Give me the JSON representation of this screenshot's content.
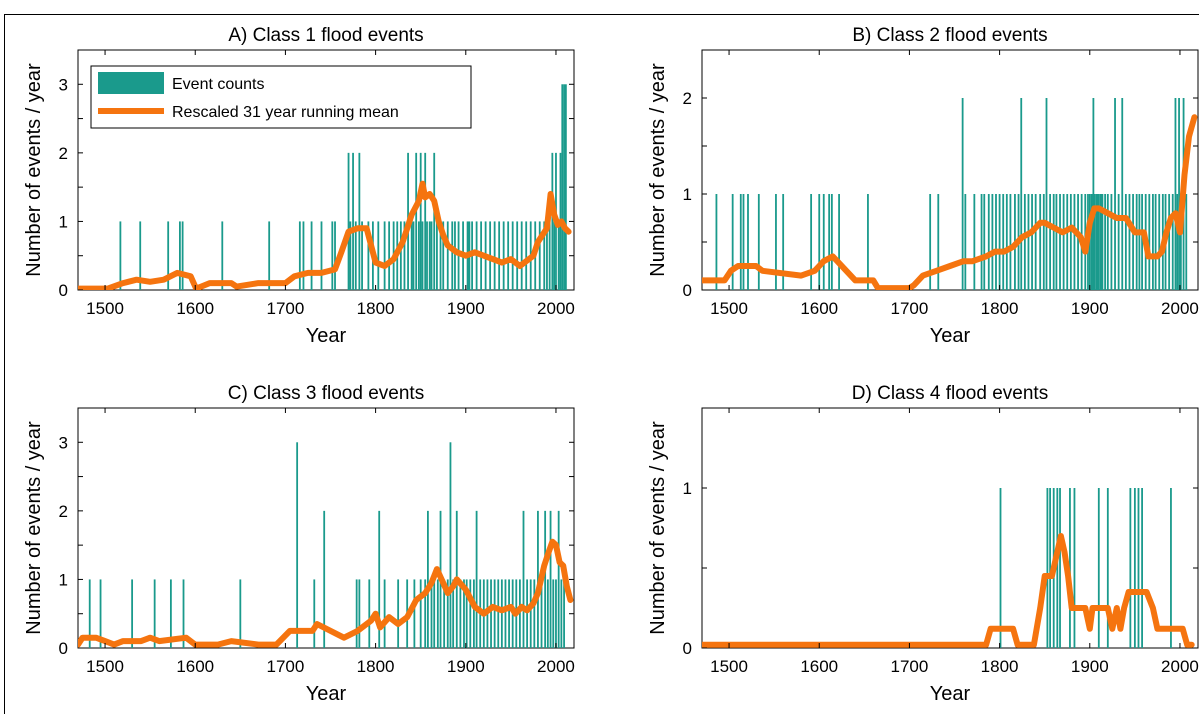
{
  "legend": {
    "bars_label": "Event counts",
    "line_label": "Rescaled 31 year running mean"
  },
  "colors": {
    "bars": "#1a9a8c",
    "line": "#f5740f",
    "axis": "#000000"
  },
  "chart_data": [
    {
      "type": "bar",
      "title": "A) Class 1 flood events",
      "xlabel": "Year",
      "ylabel": "Number of events / year",
      "xlim": [
        1470,
        2020
      ],
      "ylim": [
        0,
        3.5
      ],
      "xticks": [
        1500,
        1600,
        1700,
        1800,
        1900,
        2000
      ],
      "yticks": [
        0,
        1,
        2,
        3
      ],
      "legend_position": "top-left",
      "grid": false,
      "series": [
        {
          "name": "Event counts",
          "x": [
            1517,
            1539,
            1570,
            1583,
            1586,
            1630,
            1682,
            1716,
            1720,
            1729,
            1740,
            1752,
            1755,
            1770,
            1772,
            1775,
            1778,
            1782,
            1785,
            1792,
            1797,
            1803,
            1810,
            1815,
            1820,
            1824,
            1828,
            1832,
            1836,
            1840,
            1842,
            1845,
            1848,
            1850,
            1852,
            1855,
            1857,
            1860,
            1862,
            1865,
            1868,
            1872,
            1875,
            1880,
            1885,
            1888,
            1892,
            1897,
            1902,
            1904,
            1907,
            1912,
            1917,
            1922,
            1927,
            1932,
            1937,
            1942,
            1947,
            1952,
            1957,
            1962,
            1967,
            1972,
            1977,
            1982,
            1987,
            1990,
            1993,
            1996,
            1998,
            2000,
            2003,
            2005,
            2007,
            2009,
            2011
          ],
          "values": [
            1,
            1,
            1,
            1,
            1,
            1,
            1,
            1,
            1,
            1,
            1,
            1,
            1,
            2,
            1,
            2,
            1,
            2,
            1,
            1,
            1,
            1,
            1,
            1,
            1,
            1,
            1,
            1,
            2,
            1,
            1,
            2,
            1,
            2,
            1,
            2,
            1,
            1,
            1,
            2,
            1,
            1,
            1,
            1,
            1,
            1,
            1,
            1,
            1,
            1,
            1,
            1,
            1,
            1,
            1,
            1,
            1,
            1,
            1,
            1,
            1,
            1,
            1,
            1,
            1,
            1,
            1,
            1,
            1,
            2,
            1,
            2,
            1,
            2,
            3,
            3,
            3
          ]
        },
        {
          "name": "Rescaled 31 year running mean",
          "x": [
            1470,
            1503,
            1520,
            1535,
            1550,
            1565,
            1580,
            1595,
            1601,
            1616,
            1640,
            1646,
            1670,
            1700,
            1710,
            1725,
            1740,
            1755,
            1762,
            1770,
            1780,
            1790,
            1800,
            1810,
            1820,
            1830,
            1840,
            1848,
            1852,
            1855,
            1860,
            1865,
            1870,
            1875,
            1880,
            1890,
            1900,
            1910,
            1920,
            1930,
            1940,
            1950,
            1960,
            1970,
            1975,
            1980,
            1985,
            1990,
            1994,
            1998,
            2002,
            2006,
            2010,
            2014
          ],
          "values": [
            0.02,
            0.02,
            0.1,
            0.15,
            0.12,
            0.15,
            0.25,
            0.2,
            0.02,
            0.1,
            0.1,
            0.05,
            0.1,
            0.1,
            0.2,
            0.25,
            0.25,
            0.3,
            0.55,
            0.85,
            0.9,
            0.9,
            0.4,
            0.35,
            0.45,
            0.7,
            1.1,
            1.3,
            1.55,
            1.35,
            1.4,
            1.3,
            1.0,
            0.8,
            0.65,
            0.55,
            0.5,
            0.55,
            0.5,
            0.45,
            0.4,
            0.45,
            0.35,
            0.45,
            0.5,
            0.7,
            0.8,
            0.9,
            1.4,
            1.1,
            0.95,
            1.0,
            0.9,
            0.85
          ]
        }
      ]
    },
    {
      "type": "bar",
      "title": "B) Class 2 flood events",
      "xlabel": "Year",
      "ylabel": "Number of events / year",
      "xlim": [
        1470,
        2020
      ],
      "ylim": [
        0,
        2.5
      ],
      "xticks": [
        1500,
        1600,
        1700,
        1800,
        1900,
        2000
      ],
      "yticks": [
        0,
        1,
        2
      ],
      "grid": false,
      "series": [
        {
          "name": "Event counts",
          "x": [
            1486,
            1504,
            1513,
            1516,
            1521,
            1533,
            1552,
            1560,
            1591,
            1600,
            1605,
            1611,
            1614,
            1622,
            1654,
            1723,
            1732,
            1759,
            1762,
            1772,
            1780,
            1783,
            1788,
            1792,
            1796,
            1800,
            1804,
            1808,
            1812,
            1817,
            1821,
            1824,
            1828,
            1832,
            1836,
            1840,
            1845,
            1849,
            1852,
            1856,
            1860,
            1863,
            1867,
            1871,
            1875,
            1879,
            1883,
            1887,
            1891,
            1895,
            1898,
            1900,
            1902,
            1904,
            1905,
            1907,
            1909,
            1910,
            1912,
            1914,
            1917,
            1920,
            1924,
            1928,
            1932,
            1936,
            1940,
            1944,
            1948,
            1952,
            1955,
            1958,
            1962,
            1966,
            1970,
            1973,
            1977,
            1981,
            1984,
            1988,
            1992,
            1995,
            1997,
            1999,
            2001,
            2004,
            2007
          ],
          "values": [
            1,
            1,
            1,
            1,
            1,
            1,
            1,
            1,
            1,
            1,
            1,
            1,
            1,
            1,
            1,
            1,
            1,
            2,
            1,
            1,
            1,
            1,
            1,
            1,
            1,
            1,
            1,
            1,
            1,
            1,
            1,
            2,
            1,
            1,
            1,
            1,
            1,
            1,
            2,
            1,
            1,
            1,
            1,
            1,
            1,
            1,
            1,
            1,
            1,
            1,
            1,
            1,
            1,
            2,
            1,
            1,
            1,
            1,
            1,
            1,
            1,
            1,
            1,
            2,
            1,
            2,
            1,
            1,
            1,
            1,
            1,
            1,
            1,
            1,
            1,
            1,
            1,
            1,
            1,
            1,
            1,
            2,
            1,
            2,
            1,
            2,
            1
          ]
        },
        {
          "name": "Rescaled 31 year running mean",
          "x": [
            1470,
            1495,
            1502,
            1510,
            1530,
            1537,
            1580,
            1595,
            1600,
            1605,
            1615,
            1620,
            1630,
            1640,
            1660,
            1665,
            1700,
            1705,
            1715,
            1730,
            1745,
            1760,
            1770,
            1785,
            1795,
            1805,
            1815,
            1825,
            1835,
            1845,
            1850,
            1860,
            1870,
            1880,
            1890,
            1895,
            1900,
            1905,
            1910,
            1920,
            1930,
            1940,
            1950,
            1960,
            1965,
            1975,
            1980,
            1985,
            1990,
            1995,
            2000,
            2005,
            2010,
            2016
          ],
          "values": [
            0.1,
            0.1,
            0.2,
            0.25,
            0.25,
            0.2,
            0.15,
            0.2,
            0.25,
            0.3,
            0.35,
            0.3,
            0.2,
            0.1,
            0.1,
            0.02,
            0.02,
            0.05,
            0.15,
            0.2,
            0.25,
            0.3,
            0.3,
            0.35,
            0.4,
            0.4,
            0.45,
            0.55,
            0.6,
            0.7,
            0.7,
            0.65,
            0.6,
            0.65,
            0.55,
            0.4,
            0.7,
            0.85,
            0.85,
            0.8,
            0.75,
            0.75,
            0.6,
            0.6,
            0.35,
            0.35,
            0.4,
            0.6,
            0.75,
            0.8,
            0.6,
            1.2,
            1.6,
            1.8
          ]
        }
      ]
    },
    {
      "type": "bar",
      "title": "C) Class 3 flood events",
      "xlabel": "Year",
      "ylabel": "Number of events / year",
      "xlim": [
        1470,
        2020
      ],
      "ylim": [
        0,
        3.5
      ],
      "xticks": [
        1500,
        1600,
        1700,
        1800,
        1900,
        2000
      ],
      "yticks": [
        0,
        1,
        2,
        3
      ],
      "grid": false,
      "series": [
        {
          "name": "Event counts",
          "x": [
            1483,
            1495,
            1530,
            1555,
            1573,
            1587,
            1650,
            1713,
            1732,
            1743,
            1779,
            1782,
            1793,
            1804,
            1810,
            1825,
            1835,
            1843,
            1850,
            1855,
            1858,
            1862,
            1865,
            1869,
            1872,
            1876,
            1880,
            1883,
            1886,
            1890,
            1894,
            1898,
            1901,
            1905,
            1909,
            1912,
            1916,
            1920,
            1924,
            1928,
            1932,
            1936,
            1940,
            1944,
            1948,
            1952,
            1956,
            1960,
            1964,
            1968,
            1972,
            1976,
            1980,
            1984,
            1988,
            1991,
            1994,
            1997,
            2000,
            2003,
            2006,
            2009
          ],
          "values": [
            1,
            1,
            1,
            1,
            1,
            1,
            1,
            3,
            1,
            2,
            1,
            1,
            1,
            2,
            1,
            1,
            1,
            1,
            1,
            1,
            2,
            1,
            1,
            1,
            2,
            1,
            1,
            3,
            1,
            2,
            1,
            1,
            1,
            1,
            1,
            2,
            1,
            1,
            1,
            1,
            1,
            1,
            1,
            1,
            1,
            1,
            1,
            1,
            2,
            1,
            1,
            1,
            2,
            1,
            2,
            1,
            2,
            1,
            1,
            2,
            1,
            1
          ]
        },
        {
          "name": "Rescaled 31 year running mean",
          "x": [
            1470,
            1475,
            1490,
            1500,
            1510,
            1520,
            1540,
            1550,
            1560,
            1590,
            1600,
            1625,
            1640,
            1670,
            1690,
            1705,
            1720,
            1730,
            1735,
            1765,
            1780,
            1795,
            1800,
            1805,
            1815,
            1825,
            1835,
            1845,
            1855,
            1862,
            1868,
            1875,
            1880,
            1886,
            1890,
            1900,
            1910,
            1920,
            1930,
            1940,
            1950,
            1955,
            1962,
            1968,
            1975,
            1980,
            1987,
            1992,
            1996,
            2000,
            2004,
            2008,
            2012,
            2016
          ],
          "values": [
            0.05,
            0.15,
            0.15,
            0.1,
            0.05,
            0.1,
            0.1,
            0.15,
            0.1,
            0.15,
            0.05,
            0.05,
            0.1,
            0.05,
            0.05,
            0.25,
            0.25,
            0.25,
            0.35,
            0.15,
            0.25,
            0.4,
            0.5,
            0.3,
            0.45,
            0.35,
            0.45,
            0.7,
            0.8,
            0.95,
            1.15,
            0.95,
            0.8,
            0.9,
            1.0,
            0.85,
            0.6,
            0.5,
            0.6,
            0.55,
            0.6,
            0.5,
            0.6,
            0.55,
            0.65,
            0.8,
            1.2,
            1.4,
            1.55,
            1.5,
            1.25,
            1.2,
            0.9,
            0.7
          ]
        }
      ]
    },
    {
      "type": "bar",
      "title": "D) Class 4 flood events",
      "xlabel": "Year",
      "ylabel": "Number of events / year",
      "xlim": [
        1470,
        2020
      ],
      "ylim": [
        0,
        1.5
      ],
      "xticks": [
        1500,
        1600,
        1700,
        1800,
        1900,
        2000
      ],
      "yticks": [
        0,
        1
      ],
      "grid": false,
      "series": [
        {
          "name": "Event counts",
          "x": [
            1801,
            1853,
            1856,
            1860,
            1864,
            1867,
            1878,
            1883,
            1910,
            1920,
            1945,
            1950,
            1954,
            1958,
            1990
          ],
          "values": [
            1,
            1,
            1,
            1,
            1,
            1,
            1,
            1,
            1,
            1,
            1,
            1,
            1,
            1,
            1
          ]
        },
        {
          "name": "Rescaled 31 year running mean",
          "x": [
            1470,
            1785,
            1790,
            1815,
            1820,
            1838,
            1845,
            1850,
            1858,
            1864,
            1868,
            1872,
            1876,
            1880,
            1885,
            1895,
            1900,
            1903,
            1908,
            1920,
            1925,
            1930,
            1934,
            1938,
            1943,
            1963,
            1970,
            1975,
            2003,
            2008,
            2013
          ],
          "values": [
            0.02,
            0.02,
            0.12,
            0.12,
            0.02,
            0.02,
            0.25,
            0.45,
            0.45,
            0.6,
            0.7,
            0.6,
            0.45,
            0.25,
            0.25,
            0.25,
            0.12,
            0.25,
            0.25,
            0.25,
            0.12,
            0.25,
            0.12,
            0.25,
            0.35,
            0.35,
            0.25,
            0.12,
            0.12,
            0.02,
            0.02
          ]
        }
      ]
    }
  ]
}
